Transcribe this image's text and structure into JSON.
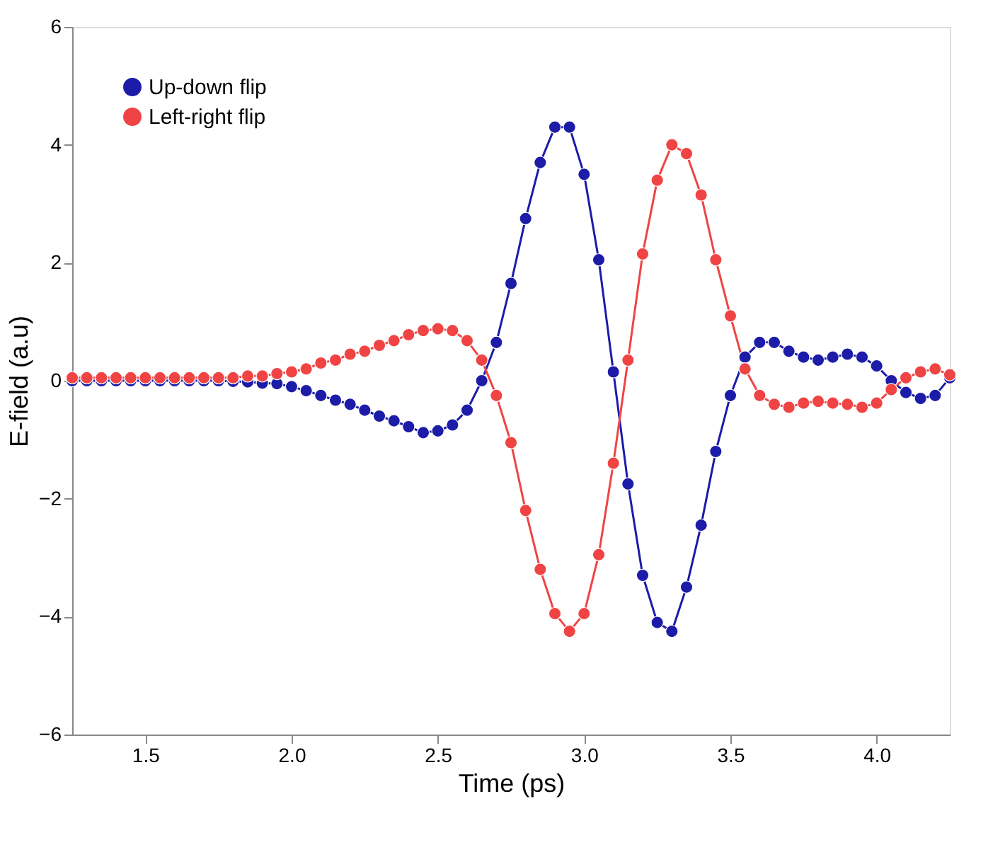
{
  "chart_data": {
    "type": "line",
    "xlabel": "Time (ps)",
    "ylabel": "E-field (a.u)",
    "x": [
      1.25,
      1.3,
      1.35,
      1.4,
      1.45,
      1.5,
      1.55,
      1.6,
      1.65,
      1.7,
      1.75,
      1.8,
      1.85,
      1.9,
      1.95,
      2.0,
      2.05,
      2.1,
      2.15,
      2.2,
      2.25,
      2.3,
      2.35,
      2.4,
      2.45,
      2.5,
      2.55,
      2.6,
      2.65,
      2.7,
      2.75,
      2.8,
      2.85,
      2.9,
      2.95,
      3.0,
      3.05,
      3.1,
      3.15,
      3.2,
      3.25,
      3.3,
      3.35,
      3.4,
      3.45,
      3.5,
      3.55,
      3.6,
      3.65,
      3.7,
      3.75,
      3.8,
      3.85,
      3.9,
      3.95,
      4.0,
      4.05,
      4.1,
      4.15,
      4.2,
      4.25
    ],
    "series": [
      {
        "name": "Up-down flip",
        "color": "#1c1ca8",
        "values": [
          0,
          0,
          0,
          0,
          0,
          0,
          0,
          0,
          0,
          0,
          0,
          -0.01,
          -0.02,
          -0.04,
          -0.05,
          -0.1,
          -0.17,
          -0.25,
          -0.33,
          -0.4,
          -0.5,
          -0.6,
          -0.68,
          -0.78,
          -0.88,
          -0.85,
          -0.75,
          -0.5,
          0.0,
          0.65,
          1.65,
          2.75,
          3.7,
          4.3,
          4.3,
          3.5,
          2.05,
          0.15,
          -1.75,
          -3.3,
          -4.1,
          -4.25,
          -3.5,
          -2.45,
          -1.2,
          -0.25,
          0.4,
          0.65,
          0.65,
          0.5,
          0.4,
          0.35,
          0.4,
          0.45,
          0.4,
          0.25,
          0.0,
          -0.2,
          -0.3,
          -0.25,
          0.05
        ]
      },
      {
        "name": "Left-right flip",
        "color": "#f04444",
        "values": [
          0.05,
          0.05,
          0.05,
          0.05,
          0.05,
          0.05,
          0.05,
          0.05,
          0.05,
          0.05,
          0.05,
          0.05,
          0.08,
          0.08,
          0.12,
          0.15,
          0.2,
          0.3,
          0.35,
          0.45,
          0.5,
          0.6,
          0.68,
          0.78,
          0.85,
          0.88,
          0.85,
          0.68,
          0.35,
          -0.25,
          -1.05,
          -2.2,
          -3.2,
          -3.95,
          -4.25,
          -3.95,
          -2.95,
          -1.4,
          0.35,
          2.15,
          3.4,
          4.0,
          3.85,
          3.15,
          2.05,
          1.1,
          0.2,
          -0.25,
          -0.4,
          -0.45,
          -0.38,
          -0.35,
          -0.38,
          -0.4,
          -0.45,
          -0.38,
          -0.15,
          0.05,
          0.15,
          0.2,
          0.1
        ]
      }
    ],
    "xlim": [
      1.25,
      4.25
    ],
    "xticks": [
      {
        "value": 1.5,
        "label": "1.5"
      },
      {
        "value": 2.0,
        "label": "2.0"
      },
      {
        "value": 2.5,
        "label": "2.5"
      },
      {
        "value": 3.0,
        "label": "3.0"
      },
      {
        "value": 3.5,
        "label": "3.5"
      },
      {
        "value": 4.0,
        "label": "4.0"
      }
    ],
    "ylim": [
      -6,
      6
    ],
    "yticks": [
      -6,
      -4,
      -2,
      0,
      2,
      4,
      6
    ],
    "grid": false,
    "legend": "top left",
    "marker": "circle",
    "line_style": "solid"
  }
}
